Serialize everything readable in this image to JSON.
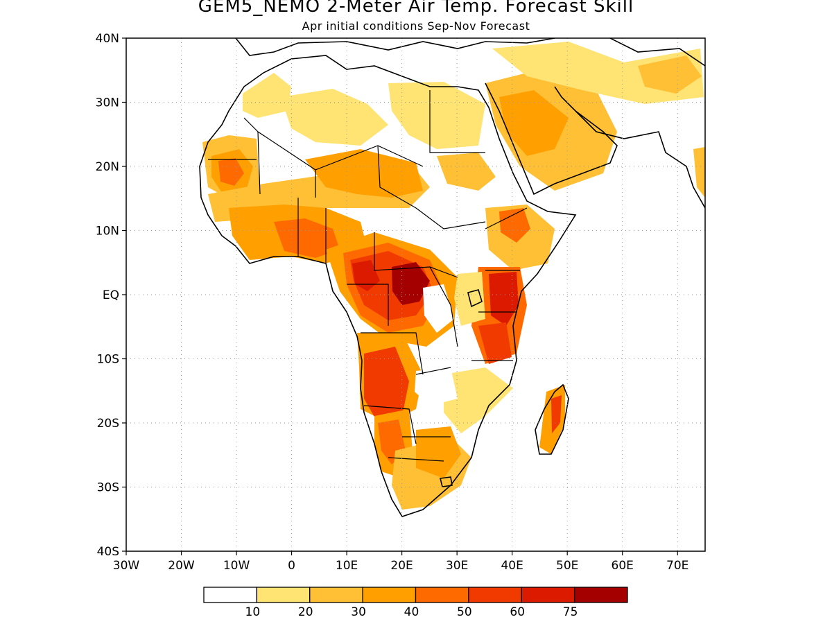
{
  "header": {
    "title": "GEM5_NEMO 2-Meter Air Temp. Forecast Skill",
    "subtitle": "Apr initial conditions  Sep-Nov Forecast"
  },
  "map": {
    "projection": "latitude-longitude",
    "lon_range": [
      -30,
      75
    ],
    "lat_range": [
      -40,
      40
    ],
    "x_tick_labels": [
      "30W",
      "20W",
      "10W",
      "0",
      "10E",
      "20E",
      "30E",
      "40E",
      "50E",
      "60E",
      "70E"
    ],
    "y_tick_labels": [
      "40N",
      "30N",
      "20N",
      "10N",
      "EQ",
      "10S",
      "20S",
      "30S",
      "40S"
    ],
    "grid": "dotted"
  },
  "legend": {
    "thresholds": [
      "10",
      "20",
      "30",
      "40",
      "50",
      "60",
      "75"
    ],
    "colors": [
      "#ffffff",
      "#ffe373",
      "#ffc035",
      "#ff9f00",
      "#ff6a00",
      "#f03a00",
      "#dc1a00",
      "#a50000"
    ]
  }
}
